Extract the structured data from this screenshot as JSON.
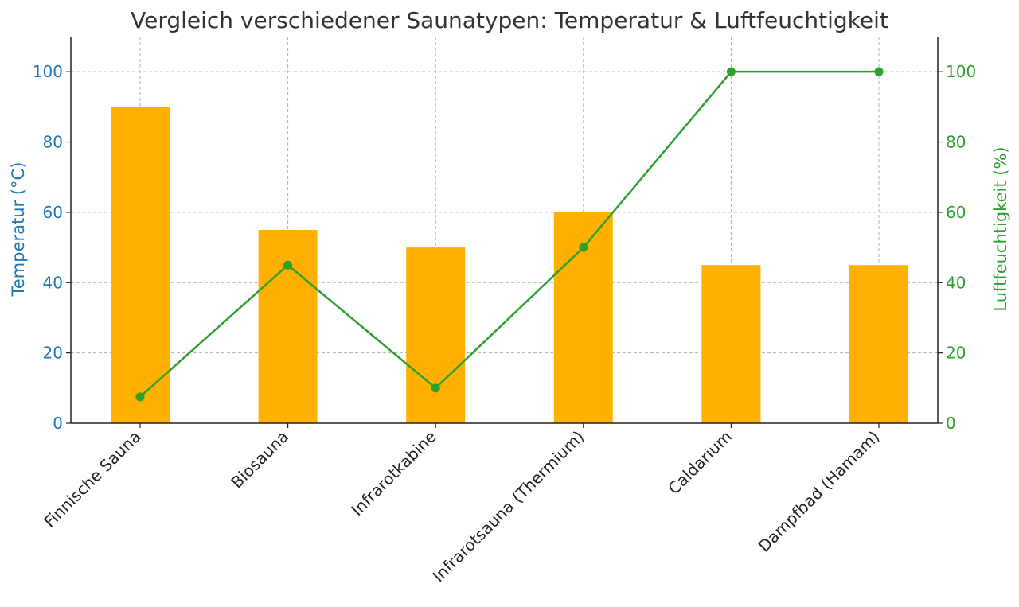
{
  "chart_data": {
    "type": "bar",
    "title": "Vergleich verschiedener Saunatypen: Temperatur & Luftfeuchtigkeit",
    "categories": [
      "Finnische Sauna",
      "Biosauna",
      "Infrarotkabine",
      "Infrarotsauna (Thermium)",
      "Caldarium",
      "Dampfbad (Hamam)"
    ],
    "ylabel": "Temperatur (°C)",
    "y2label": "Luftfeuchtigkeit (%)",
    "ylim": [
      0,
      110
    ],
    "y2lim": [
      0,
      110
    ],
    "yticks": [
      0,
      20,
      40,
      60,
      80,
      100
    ],
    "y2ticks": [
      0,
      20,
      40,
      60,
      80,
      100
    ],
    "grid": true,
    "series": [
      {
        "type": "bar",
        "axis": "left",
        "color": "#ffb000",
        "values": [
          90,
          55,
          50,
          60,
          45,
          45
        ]
      },
      {
        "type": "line",
        "axis": "right",
        "color": "#2ca02c",
        "marker": "circle",
        "values": [
          7.5,
          45,
          10,
          50,
          100,
          100
        ]
      }
    ],
    "colors": {
      "left_axis": "#1f77b4",
      "right_axis": "#2ca02c"
    }
  }
}
